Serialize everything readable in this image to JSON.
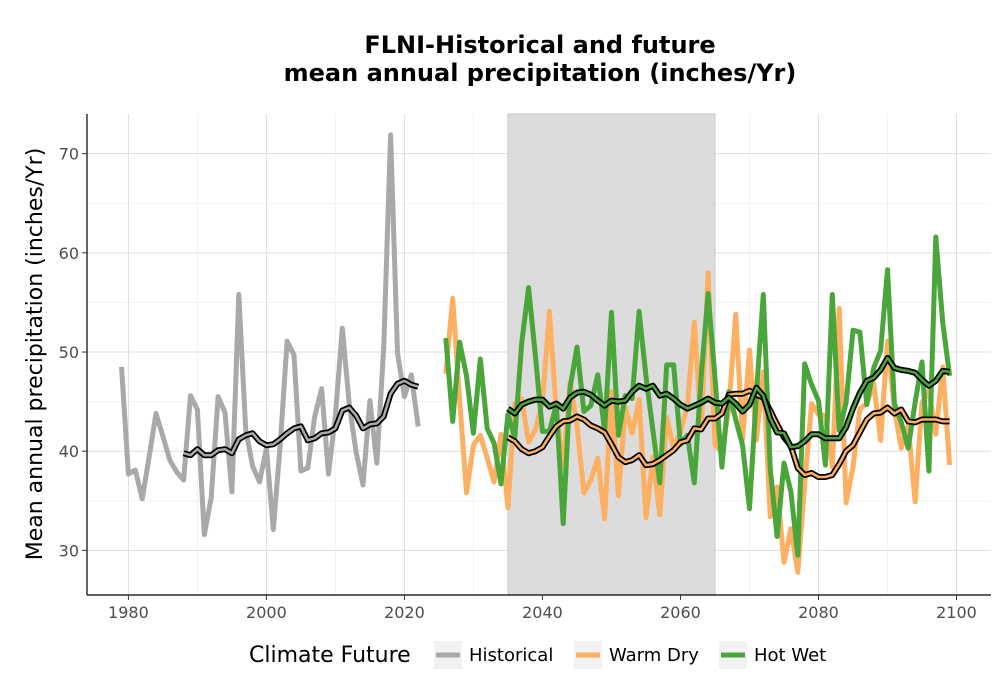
{
  "chart_data": {
    "type": "line",
    "title": "FLNI-Historical and future\nmean annual precipitation (inches/Yr)",
    "title_lines": [
      "FLNI-Historical and future",
      "mean annual precipitation (inches/Yr)"
    ],
    "xlabel": "",
    "ylabel": "Mean annual precipitation (inches/Yr)",
    "xlim": [
      1974,
      2105
    ],
    "ylim": [
      25.5,
      74
    ],
    "x_ticks": [
      1980,
      2000,
      2020,
      2040,
      2060,
      2080,
      2100
    ],
    "y_ticks": [
      30,
      40,
      50,
      60,
      70
    ],
    "grid": true,
    "shaded_period": [
      2035,
      2065
    ],
    "legend": {
      "title": "Climate Future",
      "placement": "bottom",
      "entries": [
        "Historical",
        "Warm Dry",
        "Hot Wet"
      ]
    },
    "colors": {
      "Historical": "#a9a9a9",
      "Warm Dry": "#fdb062",
      "Hot Wet": "#4aa63a",
      "smooth": "#000000",
      "shade": "#dcdcdc"
    },
    "series": [
      {
        "name": "Historical",
        "x": [
          1979,
          1980,
          1981,
          1982,
          1983,
          1984,
          1985,
          1986,
          1987,
          1988,
          1989,
          1990,
          1991,
          1992,
          1993,
          1994,
          1995,
          1996,
          1997,
          1998,
          1999,
          2000,
          2001,
          2002,
          2003,
          2004,
          2005,
          2006,
          2007,
          2008,
          2009,
          2010,
          2011,
          2012,
          2013,
          2014,
          2015,
          2016,
          2017,
          2018,
          2019,
          2020,
          2021,
          2022
        ],
        "values": [
          48.5,
          37.7,
          38.1,
          35.2,
          39.4,
          43.8,
          41.5,
          39.1,
          37.9,
          37.1,
          45.6,
          44.2,
          31.6,
          35.3,
          45.5,
          43.9,
          35.9,
          55.8,
          42.2,
          38.5,
          36.9,
          40.3,
          32.1,
          40.6,
          51.1,
          49.7,
          38.0,
          38.3,
          43.5,
          46.3,
          37.7,
          43.6,
          52.4,
          44.8,
          39.9,
          36.6,
          45.1,
          38.8,
          50.4,
          71.9,
          49.9,
          45.5,
          47.7,
          42.5
        ]
      },
      {
        "name": "Historical smooth",
        "x": [
          1988,
          1989,
          1990,
          1991,
          1992,
          1993,
          1994,
          1995,
          1996,
          1997,
          1998,
          1999,
          2000,
          2001,
          2002,
          2003,
          2004,
          2005,
          2006,
          2007,
          2008,
          2009,
          2010,
          2011,
          2012,
          2013,
          2014,
          2015,
          2016,
          2017,
          2018,
          2019,
          2020,
          2021,
          2022
        ],
        "values": [
          39.8,
          39.6,
          40.2,
          39.6,
          39.6,
          40.1,
          40.2,
          39.8,
          41.2,
          41.6,
          41.8,
          41.0,
          40.6,
          40.7,
          41.2,
          41.8,
          42.3,
          42.5,
          41.1,
          41.3,
          41.8,
          41.9,
          42.3,
          44.1,
          44.4,
          43.6,
          42.3,
          42.7,
          42.8,
          43.5,
          45.8,
          46.8,
          47.1,
          46.7,
          46.5
        ]
      },
      {
        "name": "Warm Dry",
        "x": [
          2026,
          2027,
          2028,
          2029,
          2030,
          2031,
          2032,
          2033,
          2034,
          2035,
          2036,
          2037,
          2038,
          2039,
          2040,
          2041,
          2042,
          2043,
          2044,
          2045,
          2046,
          2047,
          2048,
          2049,
          2050,
          2051,
          2052,
          2053,
          2054,
          2055,
          2056,
          2057,
          2058,
          2059,
          2060,
          2061,
          2062,
          2063,
          2064,
          2065,
          2066,
          2067,
          2068,
          2069,
          2070,
          2071,
          2072,
          2073,
          2074,
          2075,
          2076,
          2077,
          2078,
          2079,
          2080,
          2081,
          2082,
          2083,
          2084,
          2085,
          2086,
          2087,
          2088,
          2089,
          2090,
          2091,
          2092,
          2093,
          2094,
          2095,
          2096,
          2097,
          2098,
          2099
        ],
        "values": [
          47.8,
          55.4,
          45.2,
          35.8,
          40.6,
          41.6,
          39.3,
          36.9,
          41.7,
          34.3,
          44.8,
          45.3,
          40.9,
          42.2,
          45.0,
          54.1,
          43.9,
          38.4,
          47.0,
          42.6,
          35.8,
          37.1,
          39.3,
          33.2,
          46.0,
          35.5,
          44.4,
          41.8,
          45.2,
          33.3,
          39.4,
          33.6,
          43.4,
          40.3,
          41.9,
          44.6,
          53.0,
          42.2,
          58.0,
          40.6,
          40.0,
          44.2,
          53.8,
          41.2,
          50.2,
          41.1,
          48.0,
          33.4,
          36.4,
          28.8,
          32.2,
          27.8,
          36.7,
          44.8,
          43.7,
          43.6,
          38.4,
          54.4,
          34.8,
          38.4,
          44.3,
          44.8,
          46.9,
          41.1,
          51.1,
          44.2,
          40.3,
          42.6,
          34.9,
          44.9,
          46.1,
          41.7,
          48.5,
          38.6
        ]
      },
      {
        "name": "Warm Dry smooth",
        "x": [
          2035,
          2036,
          2037,
          2038,
          2039,
          2040,
          2041,
          2042,
          2043,
          2044,
          2045,
          2046,
          2047,
          2048,
          2049,
          2050,
          2051,
          2052,
          2053,
          2054,
          2055,
          2056,
          2057,
          2058,
          2059,
          2060,
          2061,
          2062,
          2063,
          2064,
          2065,
          2066,
          2067,
          2068,
          2069,
          2070,
          2071,
          2072,
          2073,
          2074,
          2075,
          2076,
          2077,
          2078,
          2079,
          2080,
          2081,
          2082,
          2083,
          2084,
          2085,
          2086,
          2087,
          2088,
          2089,
          2090,
          2091,
          2092,
          2093,
          2094,
          2095,
          2096,
          2097,
          2098,
          2099
        ],
        "values": [
          41.4,
          41.0,
          40.2,
          39.8,
          40.0,
          40.4,
          41.5,
          42.5,
          43.0,
          43.1,
          43.5,
          43.2,
          42.6,
          42.3,
          41.9,
          40.7,
          39.4,
          38.9,
          39.1,
          39.6,
          38.6,
          38.7,
          39.1,
          39.6,
          40.1,
          40.9,
          41.1,
          42.3,
          42.2,
          43.3,
          43.3,
          43.8,
          45.7,
          45.8,
          45.8,
          46.1,
          45.7,
          45.4,
          44.1,
          42.7,
          41.4,
          40.5,
          38.3,
          37.6,
          37.8,
          37.4,
          37.4,
          37.6,
          38.7,
          40.0,
          40.6,
          41.9,
          43.2,
          43.8,
          43.9,
          44.4,
          43.8,
          44.2,
          43.0,
          42.9,
          43.2,
          43.2,
          43.2,
          43.0,
          43.0
        ]
      },
      {
        "name": "Hot Wet",
        "x": [
          2026,
          2027,
          2028,
          2029,
          2030,
          2031,
          2032,
          2033,
          2034,
          2035,
          2036,
          2037,
          2038,
          2039,
          2040,
          2041,
          2042,
          2043,
          2044,
          2045,
          2046,
          2047,
          2048,
          2049,
          2050,
          2051,
          2052,
          2053,
          2054,
          2055,
          2056,
          2057,
          2058,
          2059,
          2060,
          2061,
          2062,
          2063,
          2064,
          2065,
          2066,
          2067,
          2068,
          2069,
          2070,
          2071,
          2072,
          2073,
          2074,
          2075,
          2076,
          2077,
          2078,
          2079,
          2080,
          2081,
          2082,
          2083,
          2084,
          2085,
          2086,
          2087,
          2088,
          2089,
          2090,
          2091,
          2092,
          2093,
          2094,
          2095,
          2096,
          2097,
          2098,
          2099
        ],
        "values": [
          51.4,
          43.0,
          51.0,
          47.6,
          41.8,
          49.3,
          42.3,
          40.8,
          36.7,
          43.7,
          41.4,
          50.9,
          56.5,
          49.5,
          42.0,
          42.0,
          44.7,
          32.7,
          46.4,
          50.5,
          44.0,
          44.6,
          47.7,
          42.1,
          54.0,
          41.6,
          45.6,
          45.3,
          54.1,
          47.5,
          42.1,
          36.8,
          48.7,
          48.7,
          40.7,
          41.6,
          36.8,
          47.6,
          55.9,
          47.4,
          38.4,
          46.0,
          43.2,
          40.6,
          34.2,
          45.8,
          55.8,
          38.3,
          31.4,
          38.8,
          35.9,
          29.5,
          48.8,
          46.7,
          45.1,
          38.6,
          55.8,
          42.1,
          44.9,
          52.2,
          52.0,
          44.7,
          48.4,
          50.1,
          58.3,
          44.8,
          42.9,
          40.3,
          44.9,
          49.0,
          38.0,
          61.6,
          53.0,
          47.6
        ]
      },
      {
        "name": "Hot Wet smooth",
        "x": [
          2035,
          2036,
          2037,
          2038,
          2039,
          2040,
          2041,
          2042,
          2043,
          2044,
          2045,
          2046,
          2047,
          2048,
          2049,
          2050,
          2051,
          2052,
          2053,
          2054,
          2055,
          2056,
          2057,
          2058,
          2059,
          2060,
          2061,
          2062,
          2063,
          2064,
          2065,
          2066,
          2067,
          2068,
          2069,
          2070,
          2071,
          2072,
          2073,
          2074,
          2075,
          2076,
          2077,
          2078,
          2079,
          2080,
          2081,
          2082,
          2083,
          2084,
          2085,
          2086,
          2087,
          2088,
          2089,
          2090,
          2091,
          2092,
          2093,
          2094,
          2095,
          2096,
          2097,
          2098,
          2099
        ],
        "values": [
          44.3,
          43.8,
          44.7,
          45.0,
          45.2,
          45.2,
          44.5,
          44.8,
          44.3,
          45.4,
          45.9,
          46.0,
          45.7,
          45.1,
          44.6,
          45.1,
          45.0,
          45.1,
          46.0,
          46.6,
          46.3,
          46.6,
          45.6,
          45.8,
          45.3,
          44.7,
          44.3,
          44.6,
          44.9,
          45.3,
          44.9,
          44.8,
          45.4,
          44.8,
          44.0,
          44.7,
          46.4,
          45.6,
          43.3,
          41.9,
          41.8,
          40.4,
          40.5,
          41.0,
          41.7,
          41.7,
          41.3,
          41.3,
          41.3,
          42.4,
          44.3,
          45.9,
          47.1,
          47.4,
          48.2,
          49.4,
          48.4,
          48.2,
          48.1,
          47.9,
          47.2,
          46.6,
          47.1,
          48.1,
          48.0
        ]
      }
    ]
  }
}
